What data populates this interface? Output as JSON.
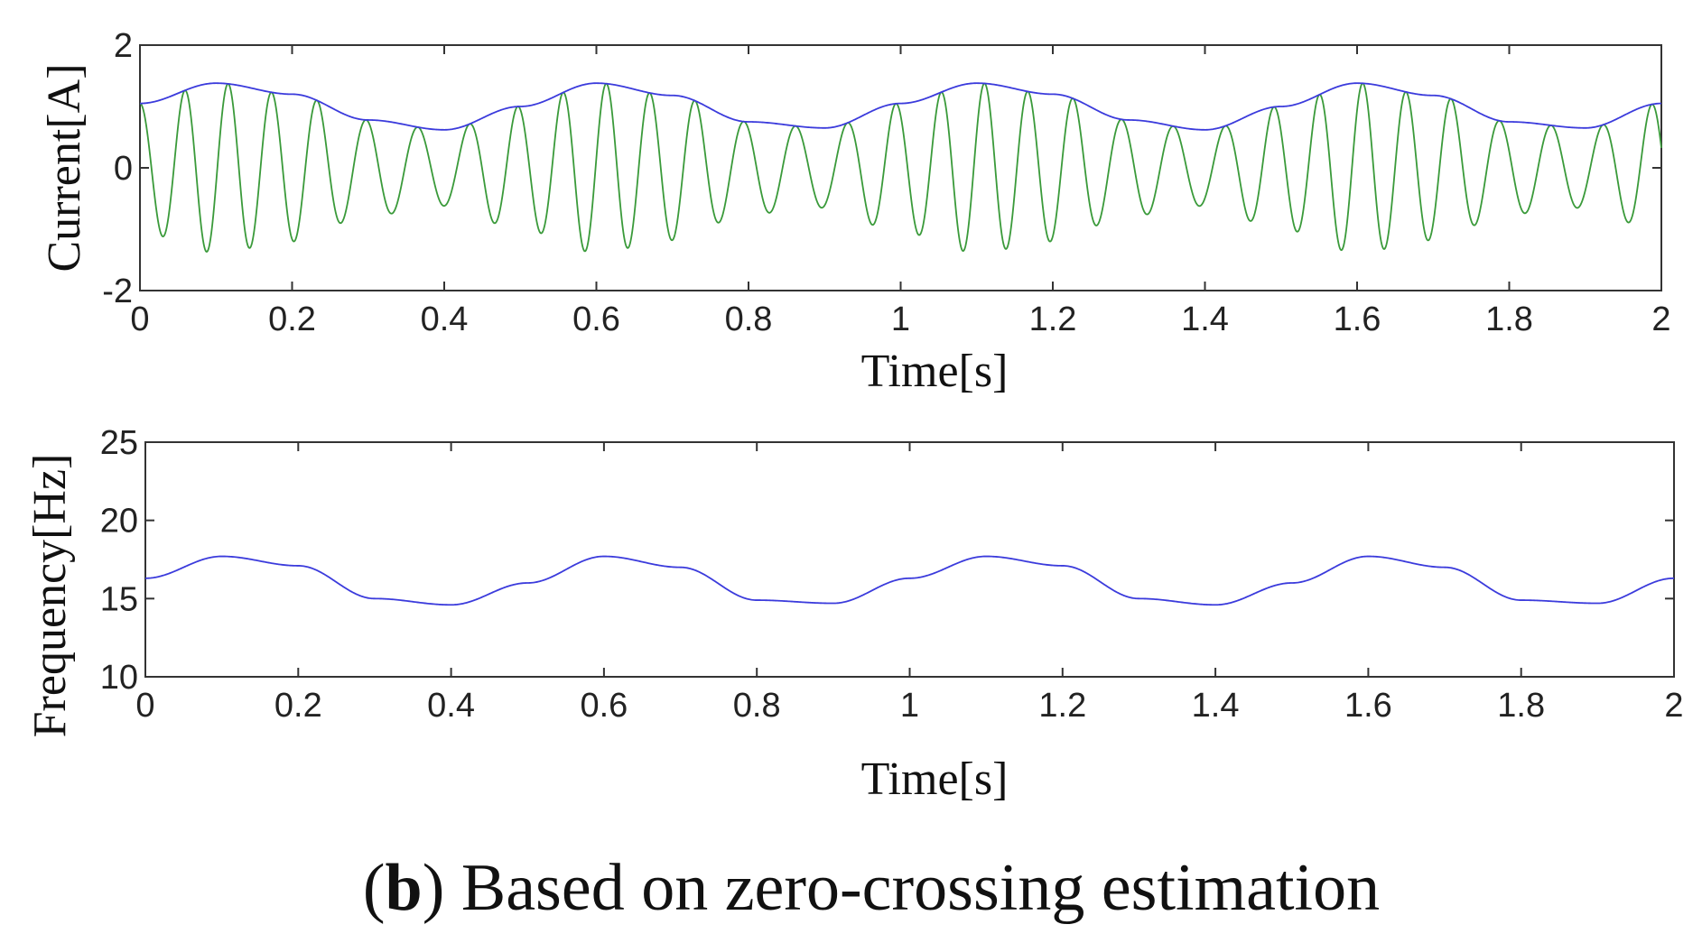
{
  "chart_data": [
    {
      "type": "line",
      "xlabel": "Time[s]",
      "ylabel": "Current[A]",
      "xlim": [
        0,
        2
      ],
      "ylim": [
        -2,
        2
      ],
      "xticks": [
        "0",
        "0.2",
        "0.4",
        "0.6",
        "0.8",
        "1",
        "1.2",
        "1.4",
        "1.6",
        "1.8",
        "2"
      ],
      "yticks": [
        "-2",
        "0",
        "2"
      ],
      "grid": false,
      "series": [
        {
          "name": "current",
          "color": "#3a9a3a",
          "description_values": {
            "carrier_frequency_mean_hz": 16.1,
            "frequency_deviation_hz": 1.6,
            "modulation_frequency_hz": 2.0
          },
          "x": [
            0.0,
            0.1,
            0.2,
            0.3,
            0.4,
            0.5,
            0.6,
            0.7,
            0.8,
            0.9,
            1.0,
            1.1,
            1.2,
            1.3,
            1.4,
            1.5,
            1.6,
            1.7,
            1.8,
            1.9,
            2.0
          ],
          "envelope": [
            1.05,
            1.38,
            1.2,
            0.78,
            0.62,
            1.0,
            1.38,
            1.18,
            0.75,
            0.65,
            1.05,
            1.38,
            1.2,
            0.78,
            0.62,
            1.0,
            1.38,
            1.18,
            0.75,
            0.65,
            1.05
          ]
        },
        {
          "name": "envelope",
          "color": "#3b3bdc",
          "x": [
            0.0,
            0.1,
            0.2,
            0.3,
            0.4,
            0.5,
            0.6,
            0.7,
            0.8,
            0.9,
            1.0,
            1.1,
            1.2,
            1.3,
            1.4,
            1.5,
            1.6,
            1.7,
            1.8,
            1.9,
            2.0
          ],
          "values": [
            1.05,
            1.38,
            1.2,
            0.78,
            0.62,
            1.0,
            1.38,
            1.18,
            0.75,
            0.65,
            1.05,
            1.38,
            1.2,
            0.78,
            0.62,
            1.0,
            1.38,
            1.18,
            0.75,
            0.65,
            1.05
          ]
        }
      ]
    },
    {
      "type": "line",
      "xlabel": "Time[s]",
      "ylabel": "Frequency[Hz]",
      "xlim": [
        0,
        2
      ],
      "ylim": [
        10,
        25
      ],
      "xticks": [
        "0",
        "0.2",
        "0.4",
        "0.6",
        "0.8",
        "1",
        "1.2",
        "1.4",
        "1.6",
        "1.8",
        "2"
      ],
      "yticks": [
        "10",
        "15",
        "20",
        "25"
      ],
      "grid": false,
      "series": [
        {
          "name": "frequency",
          "color": "#3b3bdc",
          "x": [
            0.0,
            0.1,
            0.2,
            0.3,
            0.4,
            0.5,
            0.6,
            0.7,
            0.8,
            0.9,
            1.0,
            1.1,
            1.2,
            1.3,
            1.4,
            1.5,
            1.6,
            1.7,
            1.8,
            1.9,
            2.0
          ],
          "values": [
            16.3,
            17.7,
            17.1,
            15.0,
            14.6,
            16.0,
            17.7,
            17.0,
            14.9,
            14.7,
            16.3,
            17.7,
            17.1,
            15.0,
            14.6,
            16.0,
            17.7,
            17.0,
            14.9,
            14.7,
            16.3
          ]
        }
      ]
    }
  ],
  "caption": {
    "label": "b",
    "open_paren": "(",
    "close_paren": ")",
    "text": " Based on zero-crossing estimation"
  }
}
